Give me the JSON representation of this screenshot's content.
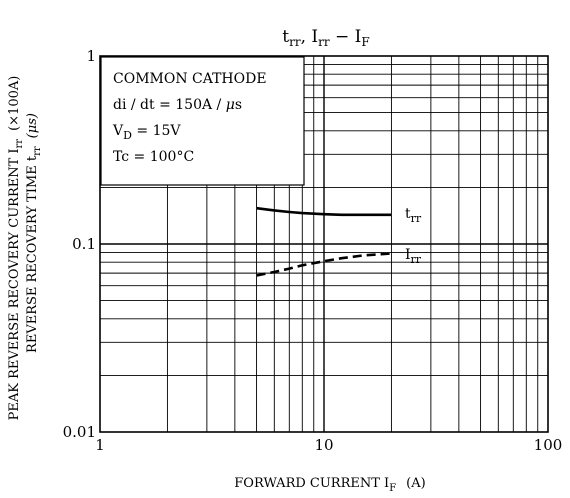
{
  "chart_data": {
    "type": "line",
    "title_parts": {
      "p1": "t",
      "p1_sub": "rr",
      "sep1": ", ",
      "p2": "I",
      "p2_sub": "rr",
      "sep2": " − ",
      "p3": "I",
      "p3_sub": "F"
    },
    "xlabel": {
      "text": "FORWARD CURRENT  I",
      "sub": "F",
      "unit": "(A)"
    },
    "ylabel_line1": {
      "text": "PEAK REVERSE RECOVERY CURRENT  I",
      "sub": "rr",
      "unit": "(×100A)"
    },
    "ylabel_line2": {
      "text": "REVERSE RECOVERY TIME  t",
      "sub": "rr",
      "unit": "(μs)"
    },
    "x_scale": "log",
    "y_scale": "log",
    "xlim": [
      1,
      100
    ],
    "ylim": [
      0.01,
      1
    ],
    "x_ticks": [
      {
        "value": 1,
        "label": "1"
      },
      {
        "value": 10,
        "label": "10"
      },
      {
        "value": 100,
        "label": "100"
      }
    ],
    "y_ticks": [
      {
        "value": 0.01,
        "label": "0.01"
      },
      {
        "value": 0.1,
        "label": "0.1"
      },
      {
        "value": 1,
        "label": "1"
      }
    ],
    "grid": true,
    "conditions": [
      {
        "text": "COMMON CATHODE"
      },
      {
        "text": "di / dt = 150A / ",
        "mu": "μ",
        "suffix": "s"
      },
      {
        "text": "V",
        "sub": "D",
        "suffix": " = 15V"
      },
      {
        "text": "Tc = 100°C"
      }
    ],
    "series": [
      {
        "name_main": "t",
        "name_sub": "rr",
        "style": "solid",
        "x": [
          5,
          6,
          7,
          8,
          10,
          12,
          15,
          20
        ],
        "y": [
          0.155,
          0.151,
          0.148,
          0.146,
          0.144,
          0.143,
          0.143,
          0.143
        ]
      },
      {
        "name_main": "I",
        "name_sub": "rr",
        "style": "dashed",
        "x": [
          5,
          6,
          7,
          8,
          10,
          12,
          15,
          20
        ],
        "y": [
          0.068,
          0.071,
          0.074,
          0.077,
          0.081,
          0.084,
          0.087,
          0.089
        ]
      }
    ]
  }
}
